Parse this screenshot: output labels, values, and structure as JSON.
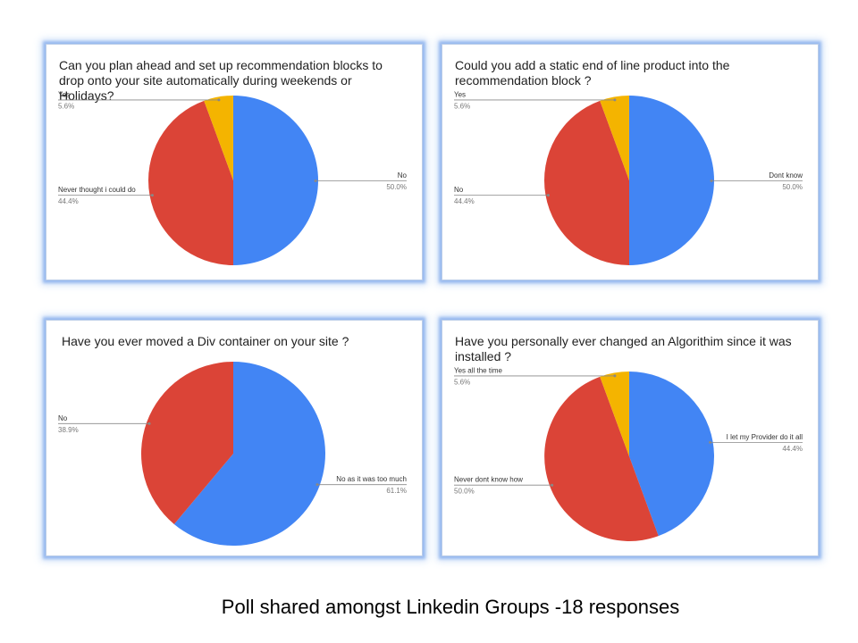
{
  "caption": "Poll shared amongst  Linkedin Groups -18 responses",
  "colors": {
    "blue": "#4285f4",
    "red": "#db4437",
    "yellow": "#f4b400"
  },
  "chart_data": [
    {
      "type": "pie",
      "title": "Can you plan ahead and set up recommendation blocks to drop onto your site automatically during weekends or Holidays?",
      "slices": [
        {
          "label": "No",
          "value": 50.0,
          "percent_label": "50.0%",
          "color": "#4285f4"
        },
        {
          "label": "Never thought i could do",
          "value": 44.4,
          "percent_label": "44.4%",
          "color": "#db4437"
        },
        {
          "label": "Yes",
          "value": 5.6,
          "percent_label": "5.6%",
          "color": "#f4b400"
        }
      ]
    },
    {
      "type": "pie",
      "title": "Could you add a static end of line product into the recommendation block ?",
      "slices": [
        {
          "label": "Dont know",
          "value": 50.0,
          "percent_label": "50.0%",
          "color": "#4285f4"
        },
        {
          "label": "No",
          "value": 44.4,
          "percent_label": "44.4%",
          "color": "#db4437"
        },
        {
          "label": "Yes",
          "value": 5.6,
          "percent_label": "5.6%",
          "color": "#f4b400"
        }
      ]
    },
    {
      "type": "pie",
      "title": "Have you ever moved a Div container on your site ?",
      "slices": [
        {
          "label": "No as it was too much",
          "value": 61.1,
          "percent_label": "61.1%",
          "color": "#4285f4"
        },
        {
          "label": "No",
          "value": 38.9,
          "percent_label": "38.9%",
          "color": "#db4437"
        }
      ]
    },
    {
      "type": "pie",
      "title": "Have you personally ever changed an Algorithim since it was installed ?",
      "slices": [
        {
          "label": "I let my Provider do it all",
          "value": 44.4,
          "percent_label": "44.4%",
          "color": "#4285f4"
        },
        {
          "label": "Never dont know how",
          "value": 50.0,
          "percent_label": "50.0%",
          "color": "#db4437"
        },
        {
          "label": "Yes all the time",
          "value": 5.6,
          "percent_label": "5.6%",
          "color": "#f4b400"
        }
      ]
    }
  ]
}
